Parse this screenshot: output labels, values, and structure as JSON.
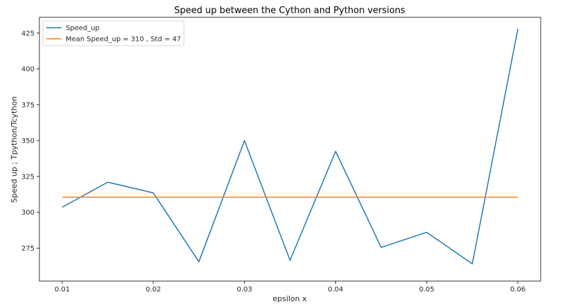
{
  "chart_data": {
    "type": "line",
    "title": "Speed up between the Cython and Python versions",
    "xlabel": "epsilon x",
    "ylabel": "Speed up ; Tpython/Tcython",
    "xlim": [
      0.0075,
      0.0625
    ],
    "ylim": [
      252,
      436
    ],
    "x_ticks": [
      "0.01",
      "0.02",
      "0.03",
      "0.04",
      "0.05",
      "0.06"
    ],
    "y_ticks": [
      "275",
      "300",
      "325",
      "350",
      "375",
      "400",
      "425"
    ],
    "x": [
      0.01,
      0.015,
      0.02,
      0.025,
      0.03,
      0.035,
      0.04,
      0.045,
      0.05,
      0.055,
      0.06
    ],
    "series": [
      {
        "name": "Speed_up",
        "color": "#1f77b4",
        "values": [
          303.5,
          321,
          313.5,
          265.5,
          350,
          266.5,
          342.5,
          275.5,
          286,
          264,
          428
        ]
      },
      {
        "name": "Mean Speed_up = 310 , Std = 47",
        "color": "#ff7f0e",
        "values": [
          310.5,
          310.5,
          310.5,
          310.5,
          310.5,
          310.5,
          310.5,
          310.5,
          310.5,
          310.5,
          310.5
        ]
      }
    ],
    "grid": false,
    "legend_position": "top-left"
  }
}
